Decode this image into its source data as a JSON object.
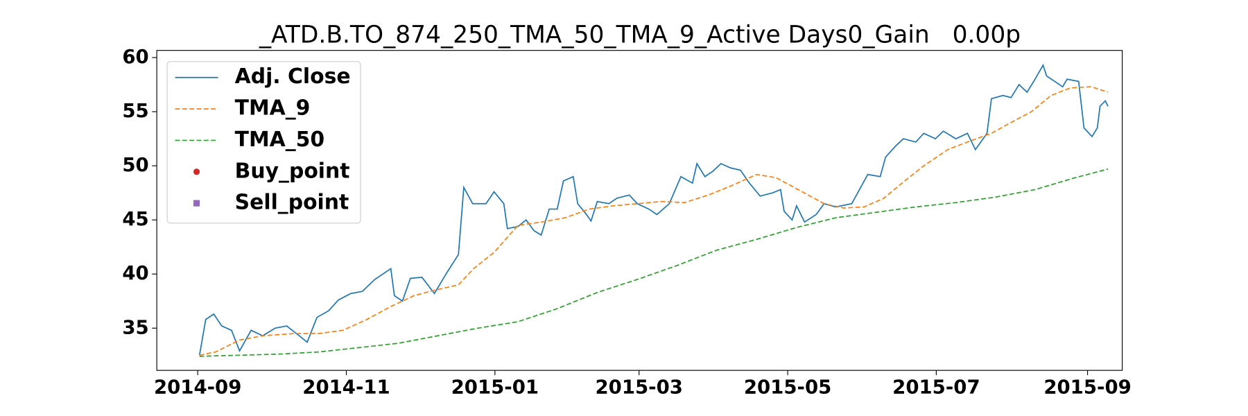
{
  "chart_data": {
    "type": "line",
    "title": "_ATD.B.TO_874_250_TMA_50_TMA_9_Active Days0_Gain   0.00p",
    "xlim": [
      2014.62,
      2015.705
    ],
    "xticks": [
      {
        "value": 2014.666,
        "label": "2014-09"
      },
      {
        "value": 2014.833,
        "label": "2014-11"
      },
      {
        "value": 2015.0,
        "label": "2015-01"
      },
      {
        "value": 2015.162,
        "label": "2015-03"
      },
      {
        "value": 2015.329,
        "label": "2015-05"
      },
      {
        "value": 2015.496,
        "label": "2015-07"
      },
      {
        "value": 2015.666,
        "label": "2015-09"
      }
    ],
    "ylim": [
      31.1,
      60.66
    ],
    "yticks": [
      35,
      40,
      45,
      50,
      55,
      60
    ],
    "legend": "upper left",
    "series": [
      {
        "name": "Adj. Close",
        "color": "#1f77b4",
        "linestyle": "solid",
        "x": [
          2014.668,
          2014.675,
          2014.684,
          2014.693,
          2014.704,
          2014.713,
          2014.726,
          2014.739,
          2014.753,
          2014.766,
          2014.78,
          2014.789,
          2014.8,
          2014.813,
          2014.824,
          2014.838,
          2014.851,
          2014.865,
          2014.883,
          2014.887,
          2014.896,
          2014.905,
          2014.918,
          2014.932,
          2014.945,
          2014.959,
          2014.965,
          2014.975,
          2014.99,
          2014.999,
          2015.01,
          2015.014,
          2015.026,
          2015.035,
          2015.044,
          2015.052,
          2015.061,
          2015.07,
          2015.077,
          2015.088,
          2015.093,
          2015.102,
          2015.108,
          2015.115,
          2015.128,
          2015.137,
          2015.151,
          2015.16,
          2015.173,
          2015.182,
          2015.196,
          2015.209,
          2015.222,
          2015.227,
          2015.236,
          2015.245,
          2015.254,
          2015.265,
          2015.276,
          2015.285,
          2015.298,
          2015.312,
          2015.321,
          2015.325,
          2015.334,
          2015.339,
          2015.348,
          2015.361,
          2015.37,
          2015.383,
          2015.401,
          2015.419,
          2015.433,
          2015.439,
          2015.45,
          2015.459,
          2015.473,
          2015.482,
          2015.495,
          2015.504,
          2015.518,
          2015.531,
          2015.54,
          2015.553,
          2015.558,
          2015.571,
          2015.58,
          2015.589,
          2015.598,
          2015.607,
          2015.616,
          2015.62,
          2015.629,
          2015.638,
          2015.643,
          2015.656,
          2015.662,
          2015.671,
          2015.677,
          2015.68,
          2015.686,
          2015.689
        ],
        "values": [
          32.5,
          35.8,
          36.3,
          35.2,
          34.8,
          32.9,
          34.8,
          34.3,
          35.0,
          35.2,
          34.3,
          33.7,
          36.0,
          36.6,
          37.6,
          38.2,
          38.4,
          39.5,
          40.5,
          38.0,
          37.5,
          39.6,
          39.7,
          38.2,
          40.0,
          41.8,
          48.0,
          46.5,
          46.5,
          47.6,
          46.5,
          44.2,
          44.4,
          45.0,
          44.0,
          43.6,
          46.0,
          46.0,
          48.6,
          49.0,
          46.5,
          45.6,
          44.9,
          46.7,
          46.5,
          47.0,
          47.3,
          46.5,
          46.0,
          45.5,
          46.5,
          49.0,
          48.4,
          50.2,
          49.0,
          49.5,
          50.2,
          49.8,
          49.6,
          48.5,
          47.2,
          47.5,
          47.8,
          45.8,
          45.0,
          46.3,
          44.8,
          45.5,
          46.5,
          46.2,
          46.5,
          49.2,
          49.0,
          50.8,
          51.8,
          52.5,
          52.2,
          53.0,
          52.5,
          53.2,
          52.5,
          53.0,
          51.5,
          53.0,
          56.2,
          56.5,
          56.3,
          57.5,
          56.8,
          58.0,
          59.3,
          58.3,
          57.8,
          57.3,
          58.0,
          57.8,
          53.5,
          52.7,
          53.5,
          55.5,
          56.0,
          55.5
        ]
      },
      {
        "name": "TMA_9",
        "color": "#ff7f0e",
        "linestyle": "dashed",
        "x": [
          2014.668,
          2014.686,
          2014.713,
          2014.739,
          2014.775,
          2014.802,
          2014.829,
          2014.856,
          2014.883,
          2014.909,
          2014.932,
          2014.959,
          2014.976,
          2014.999,
          2015.026,
          2015.052,
          2015.079,
          2015.106,
          2015.133,
          2015.16,
          2015.187,
          2015.213,
          2015.24,
          2015.267,
          2015.294,
          2015.316,
          2015.343,
          2015.37,
          2015.392,
          2015.415,
          2015.437,
          2015.459,
          2015.482,
          2015.509,
          2015.531,
          2015.558,
          2015.58,
          2015.603,
          2015.625,
          2015.647,
          2015.67,
          2015.689
        ],
        "values": [
          32.5,
          32.8,
          33.9,
          34.3,
          34.5,
          34.5,
          34.8,
          35.8,
          37.0,
          38.0,
          38.5,
          39.0,
          40.5,
          42.0,
          44.5,
          44.8,
          45.2,
          46.0,
          46.3,
          46.5,
          46.7,
          46.6,
          47.3,
          48.2,
          49.2,
          48.9,
          47.7,
          46.5,
          46.1,
          46.2,
          47.0,
          48.5,
          50.0,
          51.5,
          52.2,
          53.0,
          54.0,
          55.0,
          56.5,
          57.2,
          57.3,
          56.8
        ]
      },
      {
        "name": "TMA_50",
        "color": "#2ca02c",
        "linestyle": "dashed",
        "x": [
          2014.668,
          2014.713,
          2014.757,
          2014.802,
          2014.847,
          2014.891,
          2014.936,
          2014.981,
          2015.026,
          2015.07,
          2015.115,
          2015.16,
          2015.205,
          2015.249,
          2015.294,
          2015.339,
          2015.383,
          2015.428,
          2015.473,
          2015.518,
          2015.562,
          2015.607,
          2015.652,
          2015.689
        ],
        "values": [
          32.4,
          32.5,
          32.6,
          32.8,
          33.2,
          33.6,
          34.3,
          35.0,
          35.6,
          36.8,
          38.3,
          39.5,
          40.8,
          42.2,
          43.2,
          44.3,
          45.2,
          45.7,
          46.2,
          46.6,
          47.1,
          47.8,
          48.9,
          49.7
        ]
      },
      {
        "name": "Buy_point",
        "color": "#d62728",
        "marker": "circle",
        "x": [],
        "values": []
      },
      {
        "name": "Sell_point",
        "color": "#9467bd",
        "marker": "square",
        "x": [],
        "values": []
      }
    ]
  }
}
